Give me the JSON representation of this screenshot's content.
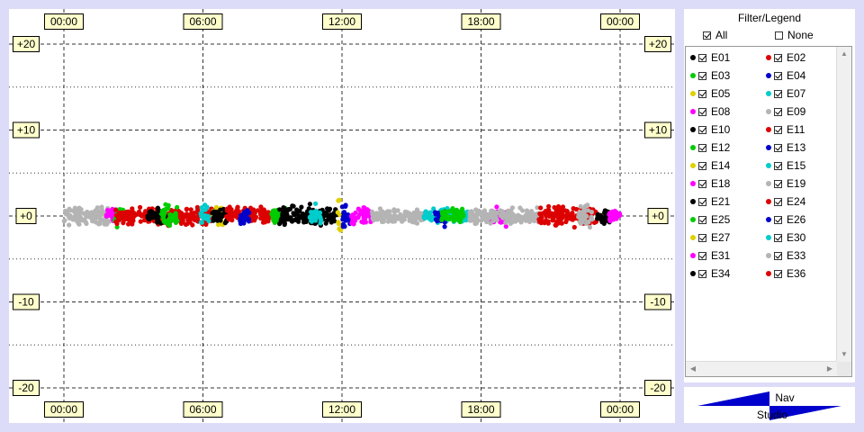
{
  "chart_data": {
    "type": "scatter",
    "x_ticks": [
      "00:00",
      "06:00",
      "12:00",
      "18:00",
      "00:00"
    ],
    "y_ticks": [
      "+20",
      "+10",
      "+0",
      "-10",
      "-20"
    ],
    "x_range_hours": [
      0,
      24
    ],
    "y_range": [
      -20,
      20
    ],
    "grid": true,
    "series_segments": [
      {
        "color": "#b4b4b4",
        "start": 0.0,
        "end": 2.3,
        "spread": 1.4
      },
      {
        "color": "#ff00ff",
        "start": 1.8,
        "end": 2.4,
        "spread": 1.0
      },
      {
        "color": "#00cc00",
        "start": 2.2,
        "end": 2.6,
        "spread": 1.6
      },
      {
        "color": "#dd0000",
        "start": 2.2,
        "end": 6.5,
        "spread": 1.3
      },
      {
        "color": "#000000",
        "start": 3.6,
        "end": 4.4,
        "spread": 1.2
      },
      {
        "color": "#00cc00",
        "start": 4.2,
        "end": 4.9,
        "spread": 1.8
      },
      {
        "color": "#e0d000",
        "start": 6.4,
        "end": 6.9,
        "spread": 1.4
      },
      {
        "color": "#00cccc",
        "start": 5.9,
        "end": 6.3,
        "spread": 1.5
      },
      {
        "color": "#000000",
        "start": 6.4,
        "end": 7.2,
        "spread": 1.3
      },
      {
        "color": "#dd0000",
        "start": 7.0,
        "end": 8.9,
        "spread": 1.4
      },
      {
        "color": "#0000cc",
        "start": 7.6,
        "end": 8.0,
        "spread": 1.9
      },
      {
        "color": "#00cc00",
        "start": 8.9,
        "end": 9.6,
        "spread": 1.3
      },
      {
        "color": "#000000",
        "start": 9.3,
        "end": 11.8,
        "spread": 1.6
      },
      {
        "color": "#00cccc",
        "start": 10.6,
        "end": 11.1,
        "spread": 1.7
      },
      {
        "color": "#e0d000",
        "start": 11.8,
        "end": 12.0,
        "spread": 3.8
      },
      {
        "color": "#0000cc",
        "start": 12.0,
        "end": 12.4,
        "spread": 2.4
      },
      {
        "color": "#ff00ff",
        "start": 12.4,
        "end": 13.3,
        "spread": 1.3
      },
      {
        "color": "#b4b4b4",
        "start": 13.3,
        "end": 15.5,
        "spread": 1.2
      },
      {
        "color": "#00cccc",
        "start": 15.5,
        "end": 17.5,
        "spread": 1.2
      },
      {
        "color": "#0000cc",
        "start": 16.0,
        "end": 16.5,
        "spread": 1.6
      },
      {
        "color": "#00cc00",
        "start": 16.3,
        "end": 17.3,
        "spread": 1.1
      },
      {
        "color": "#ff00ff",
        "start": 18.4,
        "end": 19.2,
        "spread": 1.4
      },
      {
        "color": "#b4b4b4",
        "start": 17.5,
        "end": 20.5,
        "spread": 1.2
      },
      {
        "color": "#dd0000",
        "start": 20.5,
        "end": 23.0,
        "spread": 1.5
      },
      {
        "color": "#b4b4b4",
        "start": 22.2,
        "end": 22.8,
        "spread": 1.8
      },
      {
        "color": "#000000",
        "start": 23.0,
        "end": 23.6,
        "spread": 1.3
      },
      {
        "color": "#ff00ff",
        "start": 23.5,
        "end": 24.0,
        "spread": 1.1
      }
    ]
  },
  "legend": {
    "title": "Filter/Legend",
    "all_label": "All",
    "none_label": "None",
    "items": [
      {
        "label": "E01",
        "color": "#000000"
      },
      {
        "label": "E02",
        "color": "#dd0000"
      },
      {
        "label": "E03",
        "color": "#00cc00"
      },
      {
        "label": "E04",
        "color": "#0000cc"
      },
      {
        "label": "E05",
        "color": "#e0d000"
      },
      {
        "label": "E07",
        "color": "#00cccc"
      },
      {
        "label": "E08",
        "color": "#ff00ff"
      },
      {
        "label": "E09",
        "color": "#b4b4b4"
      },
      {
        "label": "E10",
        "color": "#000000"
      },
      {
        "label": "E11",
        "color": "#dd0000"
      },
      {
        "label": "E12",
        "color": "#00cc00"
      },
      {
        "label": "E13",
        "color": "#0000cc"
      },
      {
        "label": "E14",
        "color": "#e0d000"
      },
      {
        "label": "E15",
        "color": "#00cccc"
      },
      {
        "label": "E18",
        "color": "#ff00ff"
      },
      {
        "label": "E19",
        "color": "#b4b4b4"
      },
      {
        "label": "E21",
        "color": "#000000"
      },
      {
        "label": "E24",
        "color": "#dd0000"
      },
      {
        "label": "E25",
        "color": "#00cc00"
      },
      {
        "label": "E26",
        "color": "#0000cc"
      },
      {
        "label": "E27",
        "color": "#e0d000"
      },
      {
        "label": "E30",
        "color": "#00cccc"
      },
      {
        "label": "E31",
        "color": "#ff00ff"
      },
      {
        "label": "E33",
        "color": "#b4b4b4"
      },
      {
        "label": "E34",
        "color": "#000000"
      },
      {
        "label": "E36",
        "color": "#dd0000"
      }
    ]
  },
  "logo": {
    "top_text": "Nav",
    "bottom_text": "Studio",
    "color": "#0000cc"
  }
}
